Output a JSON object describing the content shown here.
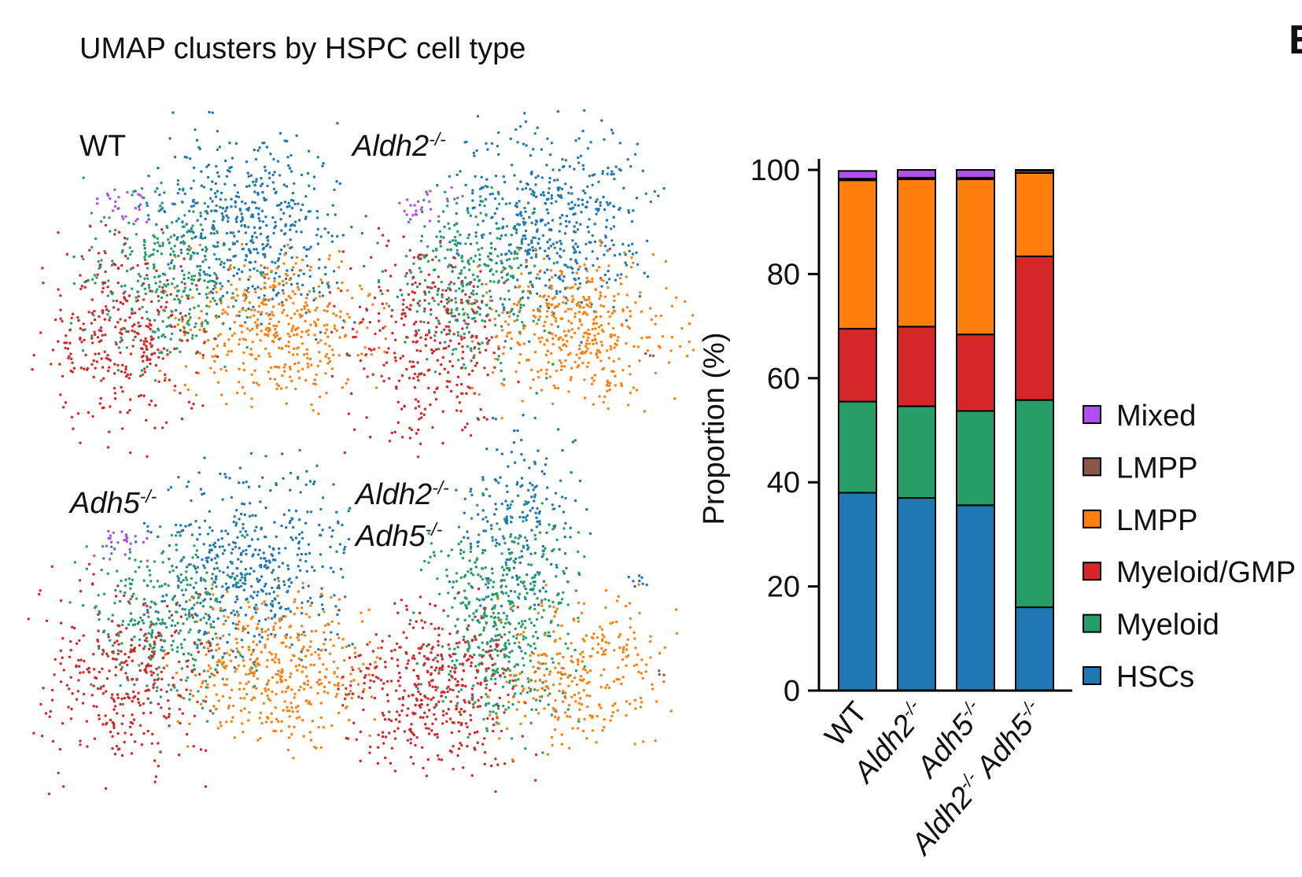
{
  "title": "UMAP clusters by HSPC cell type",
  "panel_letter": "E",
  "umap_panels": [
    {
      "labels": [
        "WT"
      ]
    },
    {
      "labels": [
        "Aldh2-/-"
      ]
    },
    {
      "labels": [
        "Adh5-/-"
      ]
    },
    {
      "labels": [
        "Aldh2-/-",
        "Adh5-/-"
      ]
    }
  ],
  "chart_data": {
    "type": "stacked_bar",
    "y_label": "Proportion (%)",
    "categories": [
      "WT",
      "Aldh2-/-",
      "Adh5-/-",
      "Aldh2-/- Adh5-/-"
    ],
    "series": [
      {
        "name": "HSCs",
        "color": "#1f77b4",
        "values": [
          38,
          37,
          35.6,
          16
        ]
      },
      {
        "name": "Myeloid",
        "color": "#279e68",
        "values": [
          17.5,
          17.6,
          18.1,
          39.8
        ]
      },
      {
        "name": "Myeloid/GMP",
        "color": "#d62728",
        "values": [
          14,
          15.3,
          14.7,
          27.6
        ]
      },
      {
        "name": "LMPP",
        "color": "#ff7f0e",
        "values": [
          28.5,
          28.3,
          29.8,
          16
        ]
      },
      {
        "name": "LMPP",
        "color": "#8c564b",
        "values": [
          0.3,
          0.3,
          0.3,
          0.5
        ]
      },
      {
        "name": "Mixed",
        "color": "#b04ef0",
        "values": [
          1.5,
          1.5,
          1.5,
          0.1
        ]
      }
    ],
    "ylim": [
      0,
      100
    ],
    "yticks": [
      0,
      20,
      40,
      60,
      80,
      100
    ],
    "legend": "right"
  }
}
